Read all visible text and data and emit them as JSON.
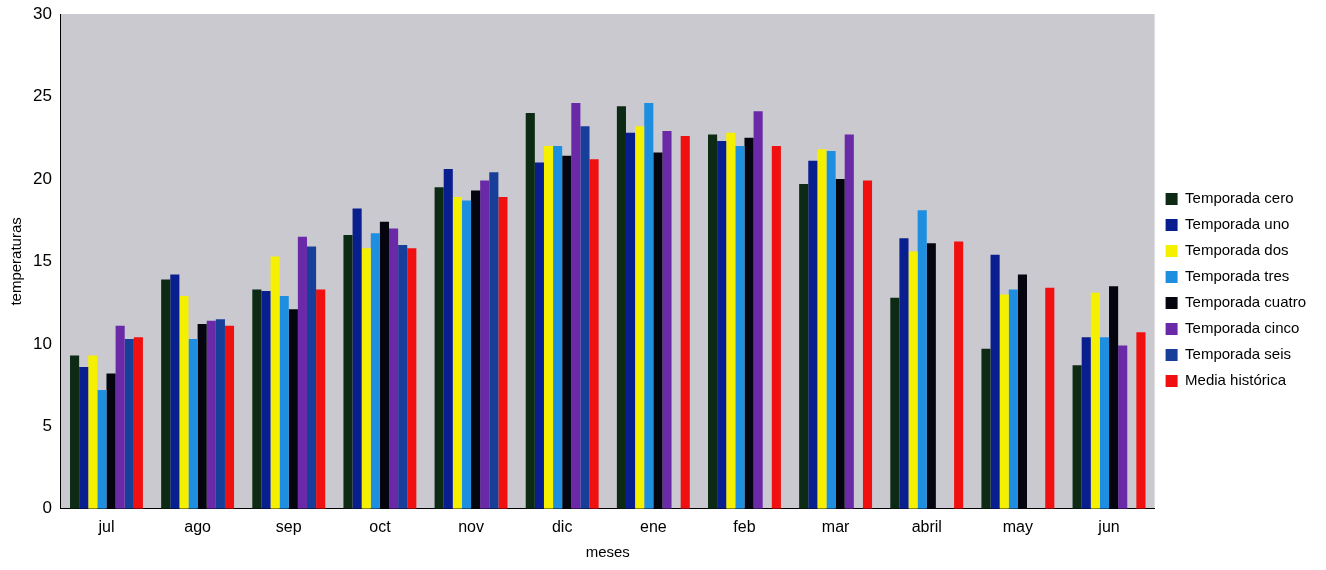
{
  "chart_data": {
    "type": "bar",
    "xlabel": "meses",
    "ylabel": "temperaturas",
    "categories": [
      "jul",
      "ago",
      "sep",
      "oct",
      "nov",
      "dic",
      "ene",
      "feb",
      "mar",
      "abril",
      "may",
      "jun"
    ],
    "ylim": [
      0,
      30
    ],
    "yticks": [
      0,
      5,
      10,
      15,
      20,
      25,
      30
    ],
    "grid": false,
    "legend": "right",
    "series": [
      {
        "name": "Temporada cero",
        "color": "#0d2b14",
        "values": [
          9.3,
          13.9,
          13.3,
          16.6,
          19.5,
          24.0,
          24.4,
          22.7,
          19.7,
          12.8,
          9.7,
          8.7
        ]
      },
      {
        "name": "Temporada uno",
        "color": "#0a1f8f",
        "values": [
          8.6,
          14.2,
          13.2,
          18.2,
          20.6,
          21.0,
          22.8,
          22.3,
          21.1,
          16.4,
          15.4,
          10.4
        ]
      },
      {
        "name": "Temporada dos",
        "color": "#f5f000",
        "values": [
          9.3,
          12.9,
          15.3,
          15.8,
          18.9,
          22.0,
          23.2,
          22.8,
          21.8,
          15.6,
          13.0,
          13.1
        ]
      },
      {
        "name": "Temporada tres",
        "color": "#1e8ee0",
        "values": [
          7.2,
          10.3,
          12.9,
          16.7,
          18.7,
          22.0,
          24.6,
          22.0,
          21.7,
          18.1,
          13.3,
          10.4
        ]
      },
      {
        "name": "Temporada cuatro",
        "color": "#050510",
        "values": [
          8.2,
          11.2,
          12.1,
          17.4,
          19.3,
          21.4,
          21.6,
          22.5,
          20.0,
          16.1,
          14.2,
          13.5
        ]
      },
      {
        "name": "Temporada cinco",
        "color": "#6a2aa8",
        "values": [
          11.1,
          11.4,
          16.5,
          17.0,
          19.9,
          24.6,
          22.9,
          24.1,
          22.7,
          null,
          null,
          9.9
        ]
      },
      {
        "name": "Temporada seis",
        "color": "#173f9a",
        "values": [
          10.3,
          11.5,
          15.9,
          16.0,
          20.4,
          23.2,
          null,
          null,
          null,
          null,
          null,
          null
        ]
      },
      {
        "name": "Media histórica",
        "color": "#f01010",
        "values": [
          10.4,
          11.1,
          13.3,
          15.8,
          18.9,
          21.2,
          22.6,
          22.0,
          19.9,
          16.2,
          13.4,
          10.7
        ]
      }
    ]
  }
}
